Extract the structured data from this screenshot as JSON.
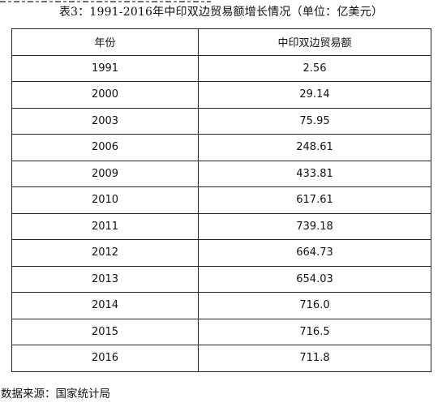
{
  "caption": "表3：1991-2016年中印双边贸易额增长情况（单位：亿美元）",
  "table": {
    "headers": [
      "年份",
      "中印双边贸易额"
    ],
    "rows": [
      [
        "1991",
        "2.56"
      ],
      [
        "2000",
        "29.14"
      ],
      [
        "2003",
        "75.95"
      ],
      [
        "2006",
        "248.61"
      ],
      [
        "2009",
        "433.81"
      ],
      [
        "2010",
        "617.61"
      ],
      [
        "2011",
        "739.18"
      ],
      [
        "2012",
        "664.73"
      ],
      [
        "2013",
        "654.03"
      ],
      [
        "2014",
        "716.0"
      ],
      [
        "2015",
        "716.5"
      ],
      [
        "2016",
        "711.8"
      ]
    ]
  },
  "source": "数据来源：国家统计局"
}
